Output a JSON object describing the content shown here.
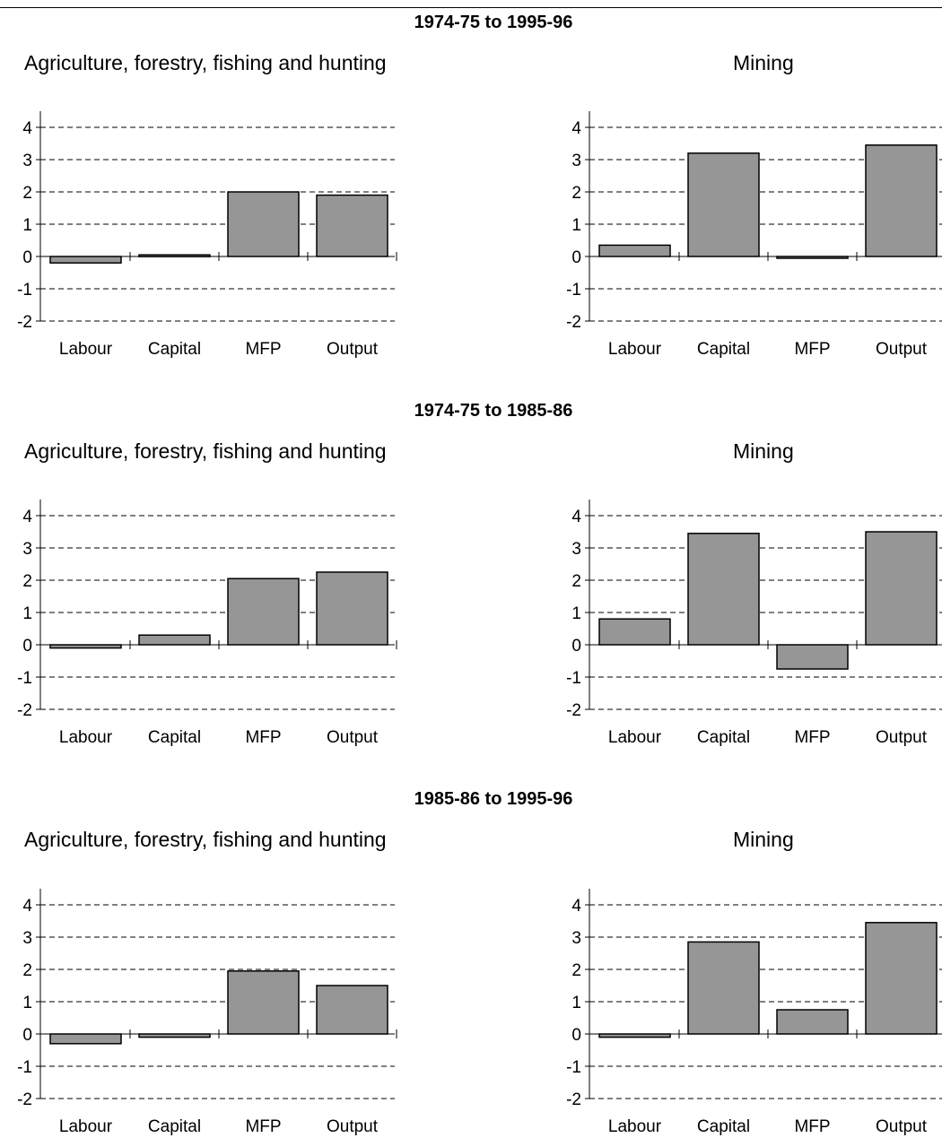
{
  "periods": [
    {
      "title": "1974-75 to 1995-96",
      "panels": [
        {
          "title": "Agriculture, forestry, fishing and hunting"
        },
        {
          "title": "Mining"
        }
      ]
    },
    {
      "title": "1974-75 to 1985-86",
      "panels": [
        {
          "title": "Agriculture, forestry, fishing and hunting"
        },
        {
          "title": "Mining"
        }
      ]
    },
    {
      "title": "1985-86 to 1995-96",
      "panels": [
        {
          "title": "Agriculture, forestry, fishing and hunting"
        },
        {
          "title": "Mining"
        }
      ]
    }
  ],
  "colors": {
    "bar_fill": "#969696",
    "bar_stroke": "#000000",
    "gridline": "#000000"
  },
  "chart_data": [
    {
      "type": "bar",
      "period": "1974-75 to 1995-96",
      "title": "Agriculture, forestry, fishing and hunting",
      "categories": [
        "Labour",
        "Capital",
        "MFP",
        "Output"
      ],
      "values": [
        -0.2,
        0.05,
        2.0,
        1.9
      ],
      "ylim": [
        -2,
        4
      ],
      "yticks": [
        -2,
        -1,
        0,
        1,
        2,
        3,
        4
      ],
      "grid": "dashed"
    },
    {
      "type": "bar",
      "period": "1974-75 to 1995-96",
      "title": "Mining",
      "categories": [
        "Labour",
        "Capital",
        "MFP",
        "Output"
      ],
      "values": [
        0.35,
        3.2,
        -0.05,
        3.45
      ],
      "ylim": [
        -2,
        4
      ],
      "yticks": [
        -2,
        -1,
        0,
        1,
        2,
        3,
        4
      ],
      "grid": "dashed"
    },
    {
      "type": "bar",
      "period": "1974-75 to 1985-86",
      "title": "Agriculture, forestry, fishing and hunting",
      "categories": [
        "Labour",
        "Capital",
        "MFP",
        "Output"
      ],
      "values": [
        -0.1,
        0.3,
        2.05,
        2.25
      ],
      "ylim": [
        -2,
        4
      ],
      "yticks": [
        -2,
        -1,
        0,
        1,
        2,
        3,
        4
      ],
      "grid": "dashed"
    },
    {
      "type": "bar",
      "period": "1974-75 to 1985-86",
      "title": "Mining",
      "categories": [
        "Labour",
        "Capital",
        "MFP",
        "Output"
      ],
      "values": [
        0.8,
        3.45,
        -0.75,
        3.5
      ],
      "ylim": [
        -2,
        4
      ],
      "yticks": [
        -2,
        -1,
        0,
        1,
        2,
        3,
        4
      ],
      "grid": "dashed"
    },
    {
      "type": "bar",
      "period": "1985-86 to 1995-96",
      "title": "Agriculture, forestry, fishing and hunting",
      "categories": [
        "Labour",
        "Capital",
        "MFP",
        "Output"
      ],
      "values": [
        -0.3,
        -0.1,
        1.95,
        1.5
      ],
      "ylim": [
        -2,
        4
      ],
      "yticks": [
        -2,
        -1,
        0,
        1,
        2,
        3,
        4
      ],
      "grid": "dashed"
    },
    {
      "type": "bar",
      "period": "1985-86 to 1995-96",
      "title": "Mining",
      "categories": [
        "Labour",
        "Capital",
        "MFP",
        "Output"
      ],
      "values": [
        -0.1,
        2.85,
        0.75,
        3.45
      ],
      "ylim": [
        -2,
        4
      ],
      "yticks": [
        -2,
        -1,
        0,
        1,
        2,
        3,
        4
      ],
      "grid": "dashed"
    }
  ]
}
